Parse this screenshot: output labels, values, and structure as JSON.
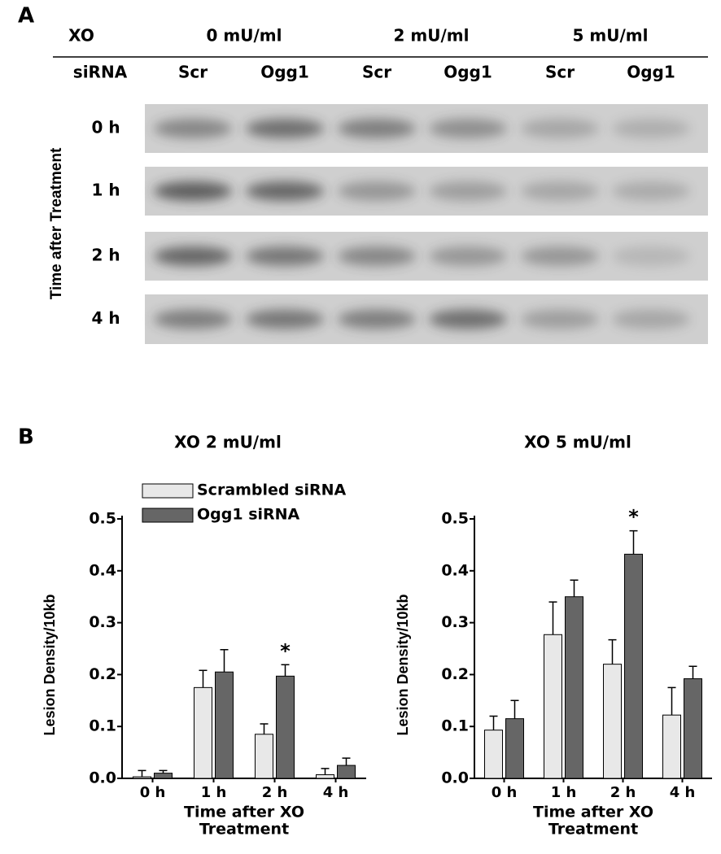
{
  "panel_a": {
    "label": "A",
    "xo_label": "XO",
    "sirna_label": "siRNA",
    "doses": [
      "0 mU/ml",
      "2 mU/ml",
      "5 mU/ml"
    ],
    "sirna": [
      "Scr",
      "Ogg1",
      "Scr",
      "Ogg1",
      "Scr",
      "Ogg1"
    ],
    "y_label": "Time after Treatment",
    "times": [
      "0 h",
      "1 h",
      "2 h",
      "4 h"
    ]
  },
  "panel_b": {
    "label": "B"
  },
  "chart_data": [
    {
      "type": "bar",
      "title": "XO 2 mU/ml",
      "ylabel": "Lesion Density/10kb",
      "xlabel": [
        "Time after XO",
        "Treatment"
      ],
      "categories": [
        "0 h",
        "1 h",
        "2 h",
        "4 h"
      ],
      "series": [
        {
          "name": "Scrambled siRNA",
          "color": "#e8e8e8",
          "values": [
            0.003,
            0.175,
            0.085,
            0.007
          ],
          "errors": [
            0.012,
            0.033,
            0.02,
            0.012
          ]
        },
        {
          "name": "Ogg1 siRNA",
          "color": "#666666",
          "values": [
            0.01,
            0.205,
            0.197,
            0.025
          ],
          "errors": [
            0.005,
            0.043,
            0.022,
            0.014
          ]
        }
      ],
      "ylim": [
        0,
        0.5
      ],
      "yticks": [
        {
          "value": 0,
          "label": "0.0"
        },
        0.1,
        0.2,
        0.3,
        0.4,
        0.5
      ],
      "annotations": [
        "*"
      ],
      "legend": "top-left"
    },
    {
      "type": "bar",
      "title": "XO 5 mU/ml",
      "ylabel": "Lesion Density/10kb",
      "xlabel": [
        "Time after XO",
        "Treatment"
      ],
      "categories": [
        "0 h",
        "1 h",
        "2 h",
        "4 h"
      ],
      "series": [
        {
          "color": "#e8e8e8",
          "values": [
            0.093,
            0.277,
            0.22,
            0.122
          ],
          "errors": [
            0.027,
            0.063,
            0.047,
            0.053
          ]
        },
        {
          "color": "#666666",
          "values": [
            0.115,
            0.35,
            0.432,
            0.192
          ],
          "errors": [
            0.035,
            0.032,
            0.045,
            0.024
          ]
        }
      ],
      "ylim": [
        0,
        0.5
      ],
      "yticks": [
        {
          "value": 0,
          "label": "0.0"
        },
        0.1,
        0.2,
        0.3,
        0.4,
        0.5
      ],
      "annotations": [
        "*"
      ]
    }
  ]
}
